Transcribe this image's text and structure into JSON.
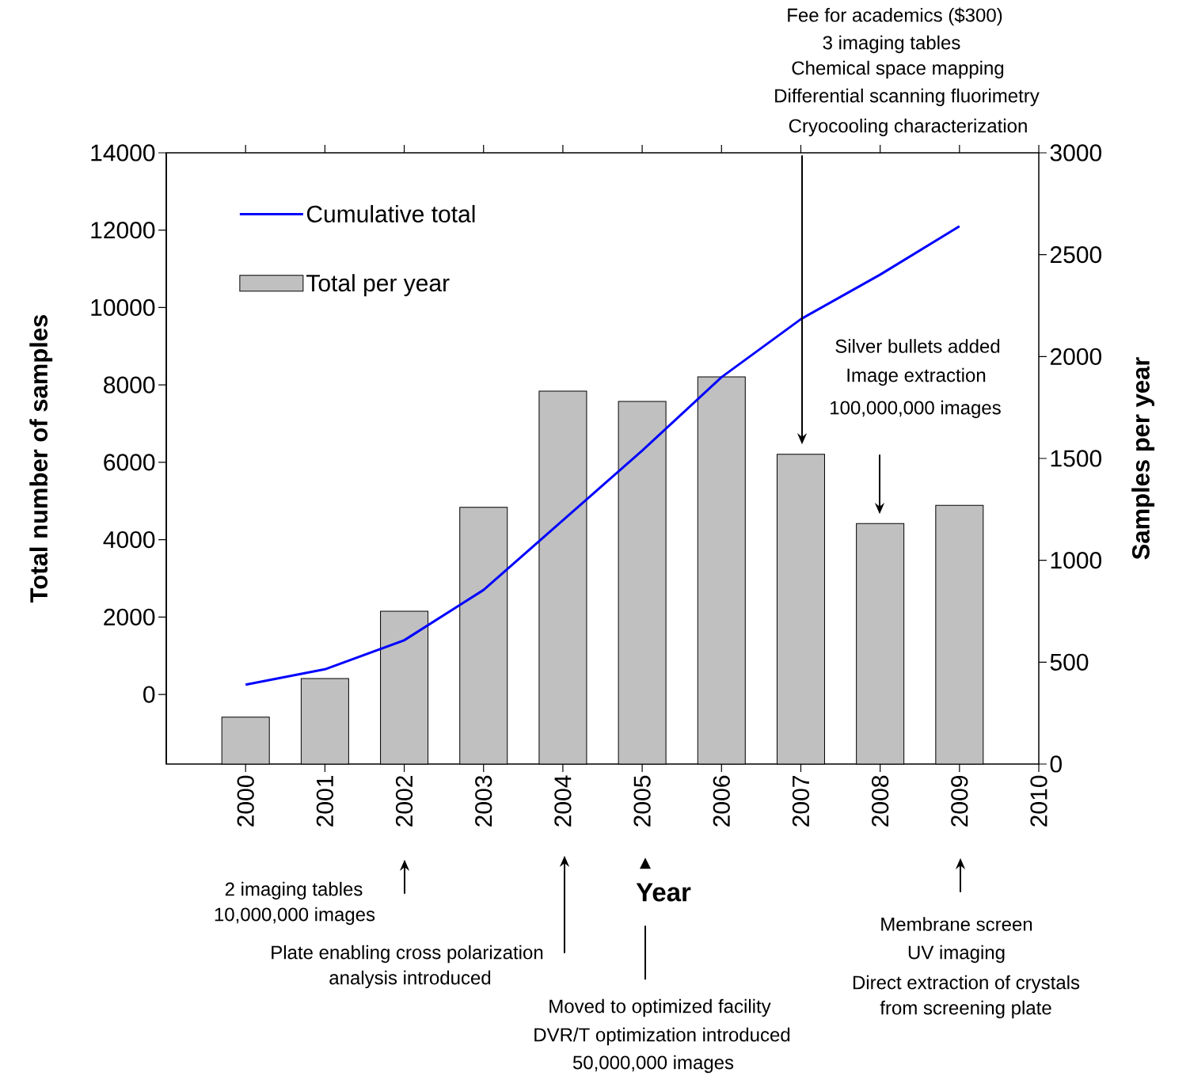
{
  "chart_data": {
    "type": "bar",
    "xlabel": "Year",
    "ylabel": "Total number of samples",
    "y2label": "Samples per year",
    "x": [
      2000,
      2001,
      2002,
      2003,
      2004,
      2005,
      2006,
      2007,
      2008,
      2009
    ],
    "xlim": [
      1999,
      2010
    ],
    "xticks": [
      2000,
      2001,
      2002,
      2003,
      2004,
      2005,
      2006,
      2007,
      2008,
      2009,
      2010
    ],
    "ylim": [
      -1800,
      14000
    ],
    "yticks": [
      0,
      2000,
      4000,
      6000,
      8000,
      10000,
      12000,
      14000
    ],
    "y2lim": [
      0,
      3000
    ],
    "y2ticks": [
      0,
      500,
      1000,
      1500,
      2000,
      2500,
      3000
    ],
    "legend": "top left",
    "series": [
      {
        "name": "Cumulative total",
        "type": "line",
        "axis": "y",
        "color": "#0000ff",
        "values": [
          250,
          650,
          1400,
          2700,
          4500,
          6300,
          8200,
          9700,
          10850,
          12100
        ]
      },
      {
        "name": "Total per year",
        "axis": "y2",
        "color": "#c0c0c0",
        "values": [
          230,
          420,
          750,
          1260,
          1830,
          1780,
          1900,
          1520,
          1180,
          1270
        ]
      }
    ],
    "annotations": [
      "Fee for academics ($300)",
      "3 imaging tables",
      "Chemical space mapping",
      "Differential scanning fluorimetry",
      "Cryocooling characterization",
      "Silver bullets added",
      "Image extraction",
      "100,000,000 images",
      "2 imaging tables",
      "10,000,000 images",
      "Plate enabling cross polarization",
      "analysis introduced",
      "Moved to optimized facility",
      "DVR/T optimization introduced",
      "50,000,000 images",
      "Membrane screen",
      "UV imaging",
      "Direct extraction of crystals",
      "from screening plate"
    ]
  }
}
